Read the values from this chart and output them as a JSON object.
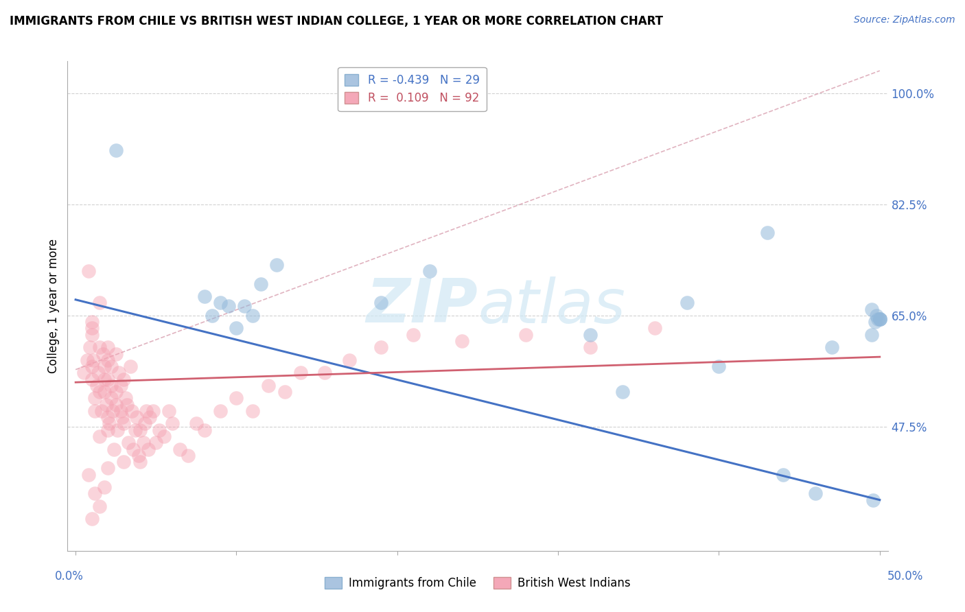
{
  "title": "IMMIGRANTS FROM CHILE VS BRITISH WEST INDIAN COLLEGE, 1 YEAR OR MORE CORRELATION CHART",
  "source": "Source: ZipAtlas.com",
  "ylabel": "College, 1 year or more",
  "xlim": [
    -0.005,
    0.505
  ],
  "ylim": [
    0.28,
    1.05
  ],
  "yticks": [
    0.475,
    0.65,
    0.825,
    1.0
  ],
  "ytick_labels": [
    "47.5%",
    "65.0%",
    "82.5%",
    "100.0%"
  ],
  "xtick_label_left": "0.0%",
  "xtick_label_right": "50.0%",
  "series1_color": "#92b8da",
  "series2_color": "#f4a0b0",
  "trend1_color": "#4472c4",
  "trend2_color": "#d06070",
  "ref_line_color": "#d9a0b0",
  "legend_label1": "R = -0.439   N = 29",
  "legend_label2": "R =  0.109   N = 92",
  "legend_color1": "#aac4e0",
  "legend_color2": "#f4a8b8",
  "watermark_color": "#d0e8f4",
  "blue_x": [
    0.025,
    0.08,
    0.085,
    0.09,
    0.095,
    0.1,
    0.105,
    0.11,
    0.115,
    0.125,
    0.19,
    0.22,
    0.32,
    0.34,
    0.38,
    0.4,
    0.43,
    0.44,
    0.46,
    0.47,
    0.495,
    0.495,
    0.496,
    0.497,
    0.498,
    0.499,
    0.5,
    0.5,
    0.5
  ],
  "blue_y": [
    0.91,
    0.68,
    0.65,
    0.67,
    0.665,
    0.63,
    0.665,
    0.65,
    0.7,
    0.73,
    0.67,
    0.72,
    0.62,
    0.53,
    0.67,
    0.57,
    0.78,
    0.4,
    0.37,
    0.6,
    0.62,
    0.66,
    0.36,
    0.64,
    0.65,
    0.645,
    0.645,
    0.645,
    0.645
  ],
  "pink_x": [
    0.005,
    0.007,
    0.008,
    0.009,
    0.01,
    0.01,
    0.01,
    0.01,
    0.01,
    0.011,
    0.012,
    0.012,
    0.013,
    0.014,
    0.015,
    0.015,
    0.015,
    0.015,
    0.016,
    0.017,
    0.018,
    0.018,
    0.018,
    0.019,
    0.02,
    0.02,
    0.02,
    0.02,
    0.02,
    0.021,
    0.022,
    0.022,
    0.022,
    0.023,
    0.024,
    0.025,
    0.025,
    0.025,
    0.026,
    0.027,
    0.028,
    0.028,
    0.029,
    0.03,
    0.03,
    0.03,
    0.031,
    0.032,
    0.033,
    0.034,
    0.035,
    0.036,
    0.037,
    0.038,
    0.039,
    0.04,
    0.04,
    0.042,
    0.043,
    0.044,
    0.045,
    0.046,
    0.048,
    0.05,
    0.052,
    0.055,
    0.058,
    0.06,
    0.065,
    0.07,
    0.075,
    0.08,
    0.09,
    0.1,
    0.11,
    0.12,
    0.13,
    0.14,
    0.155,
    0.17,
    0.19,
    0.21,
    0.24,
    0.28,
    0.32,
    0.36,
    0.008,
    0.01,
    0.012,
    0.015,
    0.018,
    0.02
  ],
  "pink_y": [
    0.56,
    0.58,
    0.72,
    0.6,
    0.62,
    0.64,
    0.57,
    0.55,
    0.63,
    0.58,
    0.5,
    0.52,
    0.54,
    0.56,
    0.6,
    0.46,
    0.53,
    0.67,
    0.5,
    0.59,
    0.53,
    0.55,
    0.57,
    0.51,
    0.55,
    0.47,
    0.49,
    0.58,
    0.6,
    0.48,
    0.52,
    0.54,
    0.57,
    0.5,
    0.44,
    0.51,
    0.53,
    0.59,
    0.47,
    0.56,
    0.5,
    0.54,
    0.49,
    0.42,
    0.48,
    0.55,
    0.52,
    0.51,
    0.45,
    0.57,
    0.5,
    0.44,
    0.47,
    0.49,
    0.43,
    0.42,
    0.47,
    0.45,
    0.48,
    0.5,
    0.44,
    0.49,
    0.5,
    0.45,
    0.47,
    0.46,
    0.5,
    0.48,
    0.44,
    0.43,
    0.48,
    0.47,
    0.5,
    0.52,
    0.5,
    0.54,
    0.53,
    0.56,
    0.56,
    0.58,
    0.6,
    0.62,
    0.61,
    0.62,
    0.6,
    0.63,
    0.4,
    0.33,
    0.37,
    0.35,
    0.38,
    0.41
  ],
  "blue_trend_x": [
    0.0,
    0.5
  ],
  "blue_trend_y": [
    0.675,
    0.36
  ],
  "pink_trend_x": [
    0.0,
    0.5
  ],
  "pink_trend_y": [
    0.545,
    0.585
  ],
  "ref_line_x": [
    0.0,
    0.5
  ],
  "ref_line_y": [
    0.565,
    1.035
  ]
}
